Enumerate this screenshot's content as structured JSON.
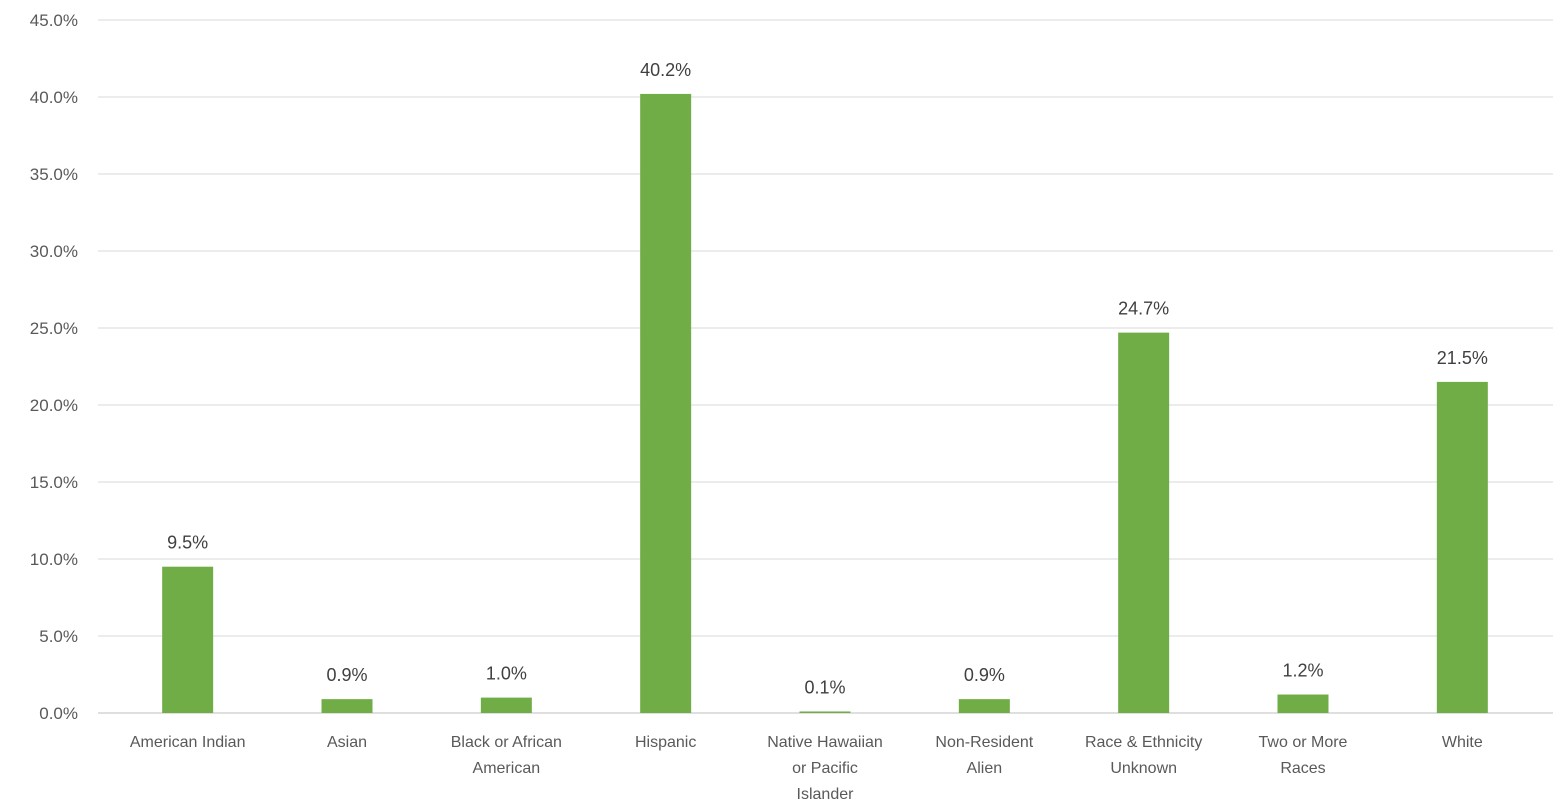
{
  "chart_data": {
    "type": "bar",
    "title": "",
    "xlabel": "",
    "ylabel": "",
    "ylim": [
      0,
      45
    ],
    "ytick_values": [
      0,
      5,
      10,
      15,
      20,
      25,
      30,
      35,
      40,
      45
    ],
    "ytick_labels": [
      "0.0%",
      "5.0%",
      "10.0%",
      "15.0%",
      "20.0%",
      "25.0%",
      "30.0%",
      "35.0%",
      "40.0%",
      "45.0%"
    ],
    "grid": true,
    "legend": "none",
    "categories": [
      "American Indian",
      "Asian",
      "Black or African American",
      "Hispanic",
      "Native Hawaiian or Pacific Islander",
      "Non-Resident Alien",
      "Race & Ethnicity Unknown",
      "Two or More Races",
      "White"
    ],
    "category_lines": [
      [
        "American Indian"
      ],
      [
        "Asian"
      ],
      [
        "Black or African",
        "American"
      ],
      [
        "Hispanic"
      ],
      [
        "Native Hawaiian",
        "or Pacific",
        "Islander"
      ],
      [
        "Non-Resident",
        "Alien"
      ],
      [
        "Race & Ethnicity",
        "Unknown"
      ],
      [
        "Two or More",
        "Races"
      ],
      [
        "White"
      ]
    ],
    "values": [
      9.5,
      0.9,
      1.0,
      40.2,
      0.1,
      0.9,
      24.7,
      1.2,
      21.5
    ],
    "data_labels": [
      "9.5%",
      "0.9%",
      "1.0%",
      "40.2%",
      "0.1%",
      "0.9%",
      "24.7%",
      "1.2%",
      "21.5%"
    ],
    "colors": {
      "bar": "#70ad47",
      "grid": "#d9d9d9",
      "tick_text": "#595959",
      "label_text": "#404040"
    }
  }
}
